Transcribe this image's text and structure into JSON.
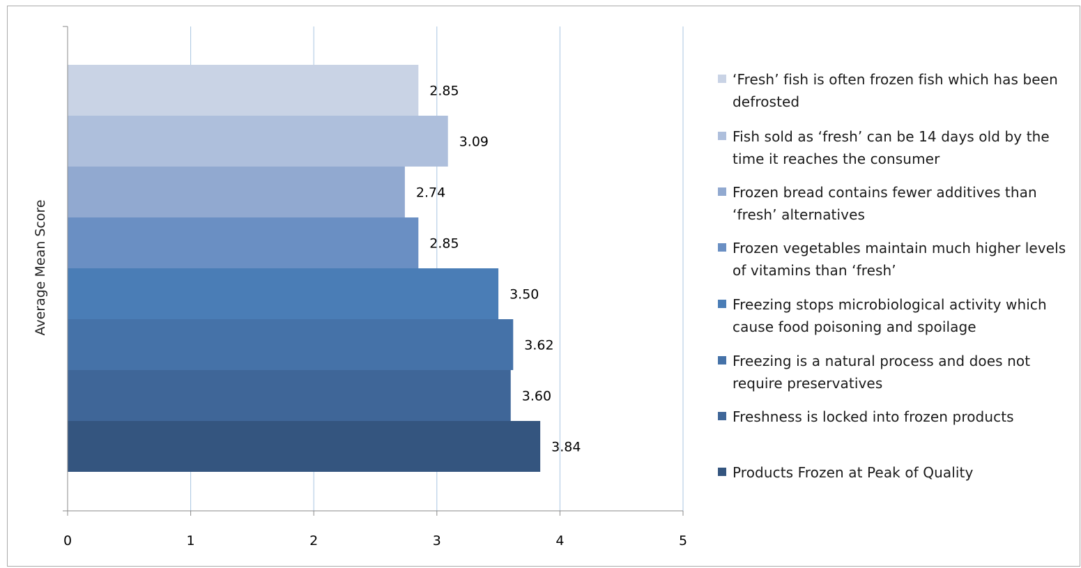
{
  "chart_data": {
    "type": "bar",
    "orientation": "horizontal",
    "title": "",
    "xlabel": "",
    "ylabel": "Average Mean Score",
    "xlim": [
      0,
      5
    ],
    "xticks": [
      "0",
      "1",
      "2",
      "3",
      "4",
      "5"
    ],
    "grid": "vertical",
    "legend_position": "right",
    "series": [
      {
        "name": "‘Fresh’ fish is often frozen fish which has been defrosted",
        "value": 2.85,
        "label": "2.85",
        "color": "#c9d3e5"
      },
      {
        "name": "Fish sold as ‘fresh’ can be 14 days old by the time it reaches the consumer",
        "value": 3.09,
        "label": "3.09",
        "color": "#aebfdc"
      },
      {
        "name": "Frozen bread contains fewer additives than ‘fresh’ alternatives",
        "value": 2.74,
        "label": "2.74",
        "color": "#91a9d0"
      },
      {
        "name": "Frozen vegetables maintain much higher levels of vitamins than ‘fresh’",
        "value": 2.85,
        "label": "2.85",
        "color": "#6a8fc3"
      },
      {
        "name": "Freezing stops microbiological activity which cause food poisoning and spoilage",
        "value": 3.5,
        "label": "3.50",
        "color": "#4a7db6"
      },
      {
        "name": " Freezing is a natural process and does not require preservatives",
        "value": 3.62,
        "label": "3.62",
        "color": "#4572a8"
      },
      {
        "name": "Freshness is locked into frozen products",
        "value": 3.6,
        "label": "3.60",
        "color": "#3f6698"
      },
      {
        "name": "Products Frozen at Peak of Quality",
        "value": 3.84,
        "label": "3.84",
        "color": "#34557f"
      }
    ]
  }
}
